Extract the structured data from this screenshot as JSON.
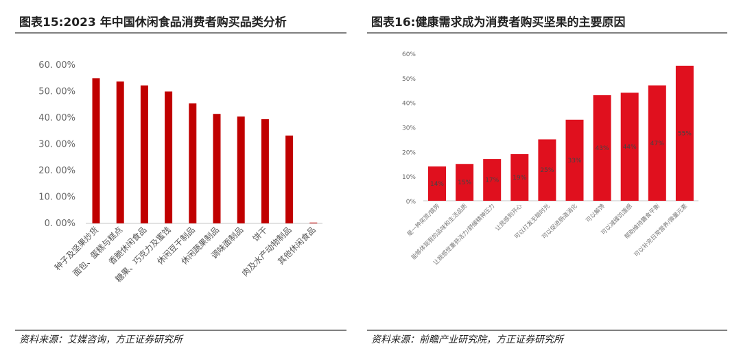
{
  "chart_data": [
    {
      "type": "bar",
      "title": "图表15:2023 年中国休闲食品消费者购买品类分析",
      "source": "资料来源：艾媒咨询，方正证券研究所",
      "categories": [
        "种子及坚果炒货",
        "面包、蛋糕与糕点",
        "香脆休闲食品",
        "糖果、巧克力及蜜饯",
        "休闲豆干制品",
        "休闲蔬果制品",
        "调味面制品",
        "饼干",
        "肉及水产动物制品",
        "其他休闲食品"
      ],
      "values": [
        55.0,
        53.8,
        52.3,
        50.0,
        45.5,
        41.5,
        40.5,
        39.5,
        33.3,
        0.3
      ],
      "ylim": [
        0,
        60
      ],
      "yticks": [
        "0. 00%",
        "10. 00%",
        "20. 00%",
        "30. 00%",
        "40. 00%",
        "50. 00%",
        "60. 00%"
      ],
      "grid": false,
      "color": "#c00000"
    },
    {
      "type": "bar",
      "title": "图表16:健康需求成为消费者购买坚果的主要原因",
      "source": "资料来源：前瞻产业研究院，方正证券研究所",
      "categories": [
        "是一种奖赏/犒劳",
        "能够体现我的品味和生活品质",
        "让我感觉重获活力/舒缓精神压力",
        "让我感到开心",
        "可以打发无聊时光",
        "可以促进肠道消化",
        "可以解馋",
        "可以减缓饥饿感",
        "帮助维持膳食平衡",
        "可以补充日常营养/微量元素"
      ],
      "values": [
        14,
        15,
        17,
        19,
        25,
        33,
        43,
        44,
        47,
        55
      ],
      "data_labels": [
        "14%",
        "15%",
        "17%",
        "19%",
        "25%",
        "33%",
        "43%",
        "44%",
        "47%",
        "55%"
      ],
      "ylim": [
        0,
        60
      ],
      "yticks": [
        "0%",
        "10%",
        "20%",
        "30%",
        "40%",
        "50%",
        "60%"
      ],
      "grid": false,
      "color": "#e0101e"
    }
  ]
}
